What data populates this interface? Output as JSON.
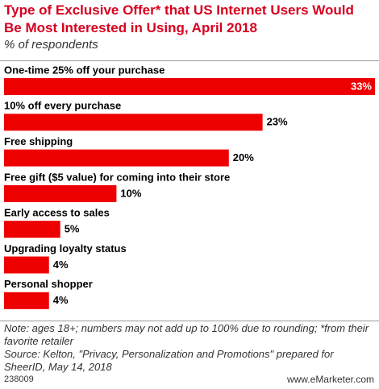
{
  "chart_data": {
    "type": "bar",
    "orientation": "horizontal",
    "title": "Type of Exclusive Offer* that US Internet Users Would Be Most Interested in Using, April 2018",
    "subtitle": "% of respondents",
    "categories": [
      "One-time 25% off your purchase",
      "10% off every purchase",
      "Free shipping",
      "Free gift ($5 value) for coming into their store",
      "Early access to sales",
      "Upgrading loyalty status",
      "Personal shopper"
    ],
    "values": [
      33,
      23,
      20,
      10,
      5,
      4,
      4
    ],
    "value_labels": [
      "33%",
      "23%",
      "20%",
      "10%",
      "5%",
      "4%",
      "4%"
    ],
    "color": "#ee0000",
    "note": "Note: ages 18+; numbers may not add up to 100% due to rounding; *from their favorite retailer",
    "source": "Source: Kelton, \"Privacy, Personalization and Promotions\" prepared for SheerID, May 14, 2018",
    "chart_id": "238009",
    "brand": "www.eMarketer.com"
  }
}
